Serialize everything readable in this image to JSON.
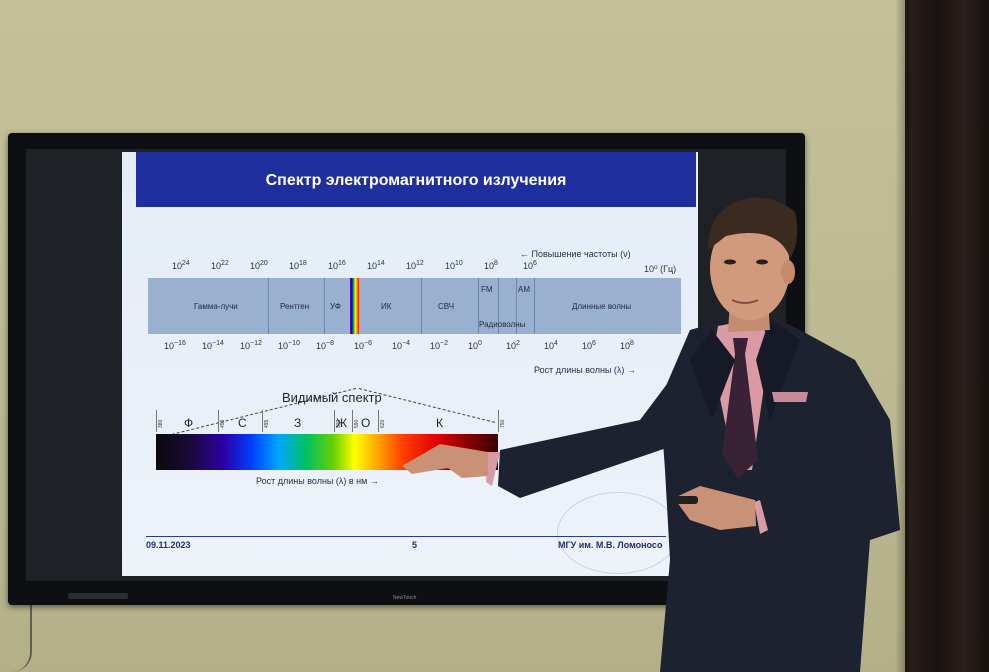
{
  "slide": {
    "title": "Спектр электромагнитного излучения",
    "freq_note": "← Повышение частоты (ν)",
    "freq_unit": "10⁰ (Гц)",
    "wave_note": "Рост длины волны (λ) →",
    "visible_title": "Видимый спектр",
    "visible_wave_note": "Рост длины волны (λ) в нм →",
    "footer_date": "09.11.2023",
    "footer_page": "5",
    "footer_org": "МГУ им. М.В. Ломоносо",
    "freq_ticks": [
      {
        "base": "10",
        "exp": "24"
      },
      {
        "base": "10",
        "exp": "22"
      },
      {
        "base": "10",
        "exp": "20"
      },
      {
        "base": "10",
        "exp": "18"
      },
      {
        "base": "10",
        "exp": "16"
      },
      {
        "base": "10",
        "exp": "14"
      },
      {
        "base": "10",
        "exp": "12"
      },
      {
        "base": "10",
        "exp": "10"
      },
      {
        "base": "10",
        "exp": "8"
      },
      {
        "base": "10",
        "exp": "6"
      },
      {
        "base": "10",
        "exp": "4"
      },
      {
        "base": "10",
        "exp": "2"
      }
    ],
    "wave_ticks": [
      {
        "base": "10",
        "exp": "−16"
      },
      {
        "base": "10",
        "exp": "−14"
      },
      {
        "base": "10",
        "exp": "−12"
      },
      {
        "base": "10",
        "exp": "−10"
      },
      {
        "base": "10",
        "exp": "−8"
      },
      {
        "base": "10",
        "exp": "−6"
      },
      {
        "base": "10",
        "exp": "−4"
      },
      {
        "base": "10",
        "exp": "−2"
      },
      {
        "base": "10",
        "exp": "0"
      },
      {
        "base": "10",
        "exp": "2"
      },
      {
        "base": "10",
        "exp": "4"
      },
      {
        "base": "10",
        "exp": "6"
      },
      {
        "base": "10",
        "exp": "8"
      }
    ],
    "bands": [
      "Гамма-лучи",
      "Рентген",
      "УФ",
      "ИК",
      "СВЧ",
      "FM",
      "АМ",
      "Радиоволны",
      "Длинные волны"
    ],
    "visible_letters": [
      "Ф",
      "С",
      "З",
      "Ж",
      "О",
      "К"
    ],
    "visible_nums": [
      "380",
      "450",
      "495",
      "570",
      "590",
      "620",
      "750"
    ]
  },
  "tv": {
    "brand": "NewTouch"
  },
  "colors": {
    "header": "#1f2f9e",
    "suit": "#1c2230",
    "shirt": "#d99aa6"
  }
}
